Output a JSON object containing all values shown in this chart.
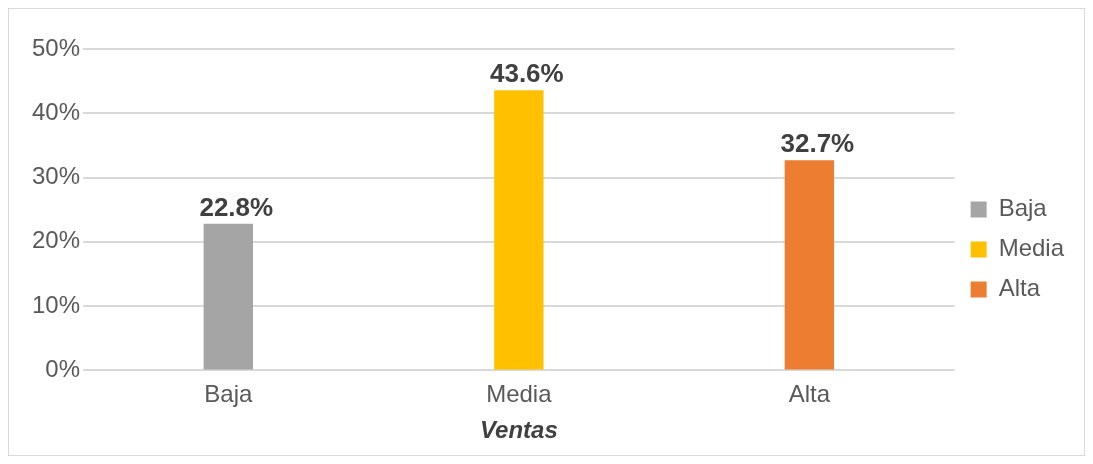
{
  "chart_data": {
    "type": "bar",
    "xlabel": "Ventas",
    "categories": [
      "Baja",
      "Media",
      "Alta"
    ],
    "series": [
      {
        "name": "Baja",
        "color": "#a5a5a5",
        "values": [
          22.8,
          null,
          null
        ],
        "value_labels": [
          "22.8%",
          null,
          null
        ]
      },
      {
        "name": "Media",
        "color": "#ffc000",
        "values": [
          null,
          43.6,
          null
        ],
        "value_labels": [
          null,
          "43.6%",
          null
        ]
      },
      {
        "name": "Alta",
        "color": "#ed7d31",
        "values": [
          null,
          null,
          32.7
        ],
        "value_labels": [
          null,
          null,
          "32.7%"
        ]
      }
    ],
    "ylim": [
      0,
      50
    ],
    "yticks": [
      {
        "value": 0,
        "label": "0%"
      },
      {
        "value": 10,
        "label": "10%"
      },
      {
        "value": 20,
        "label": "20%"
      },
      {
        "value": 30,
        "label": "30%"
      },
      {
        "value": 40,
        "label": "40%"
      },
      {
        "value": 50,
        "label": "50%"
      }
    ],
    "grid": "y",
    "legend": "right"
  }
}
